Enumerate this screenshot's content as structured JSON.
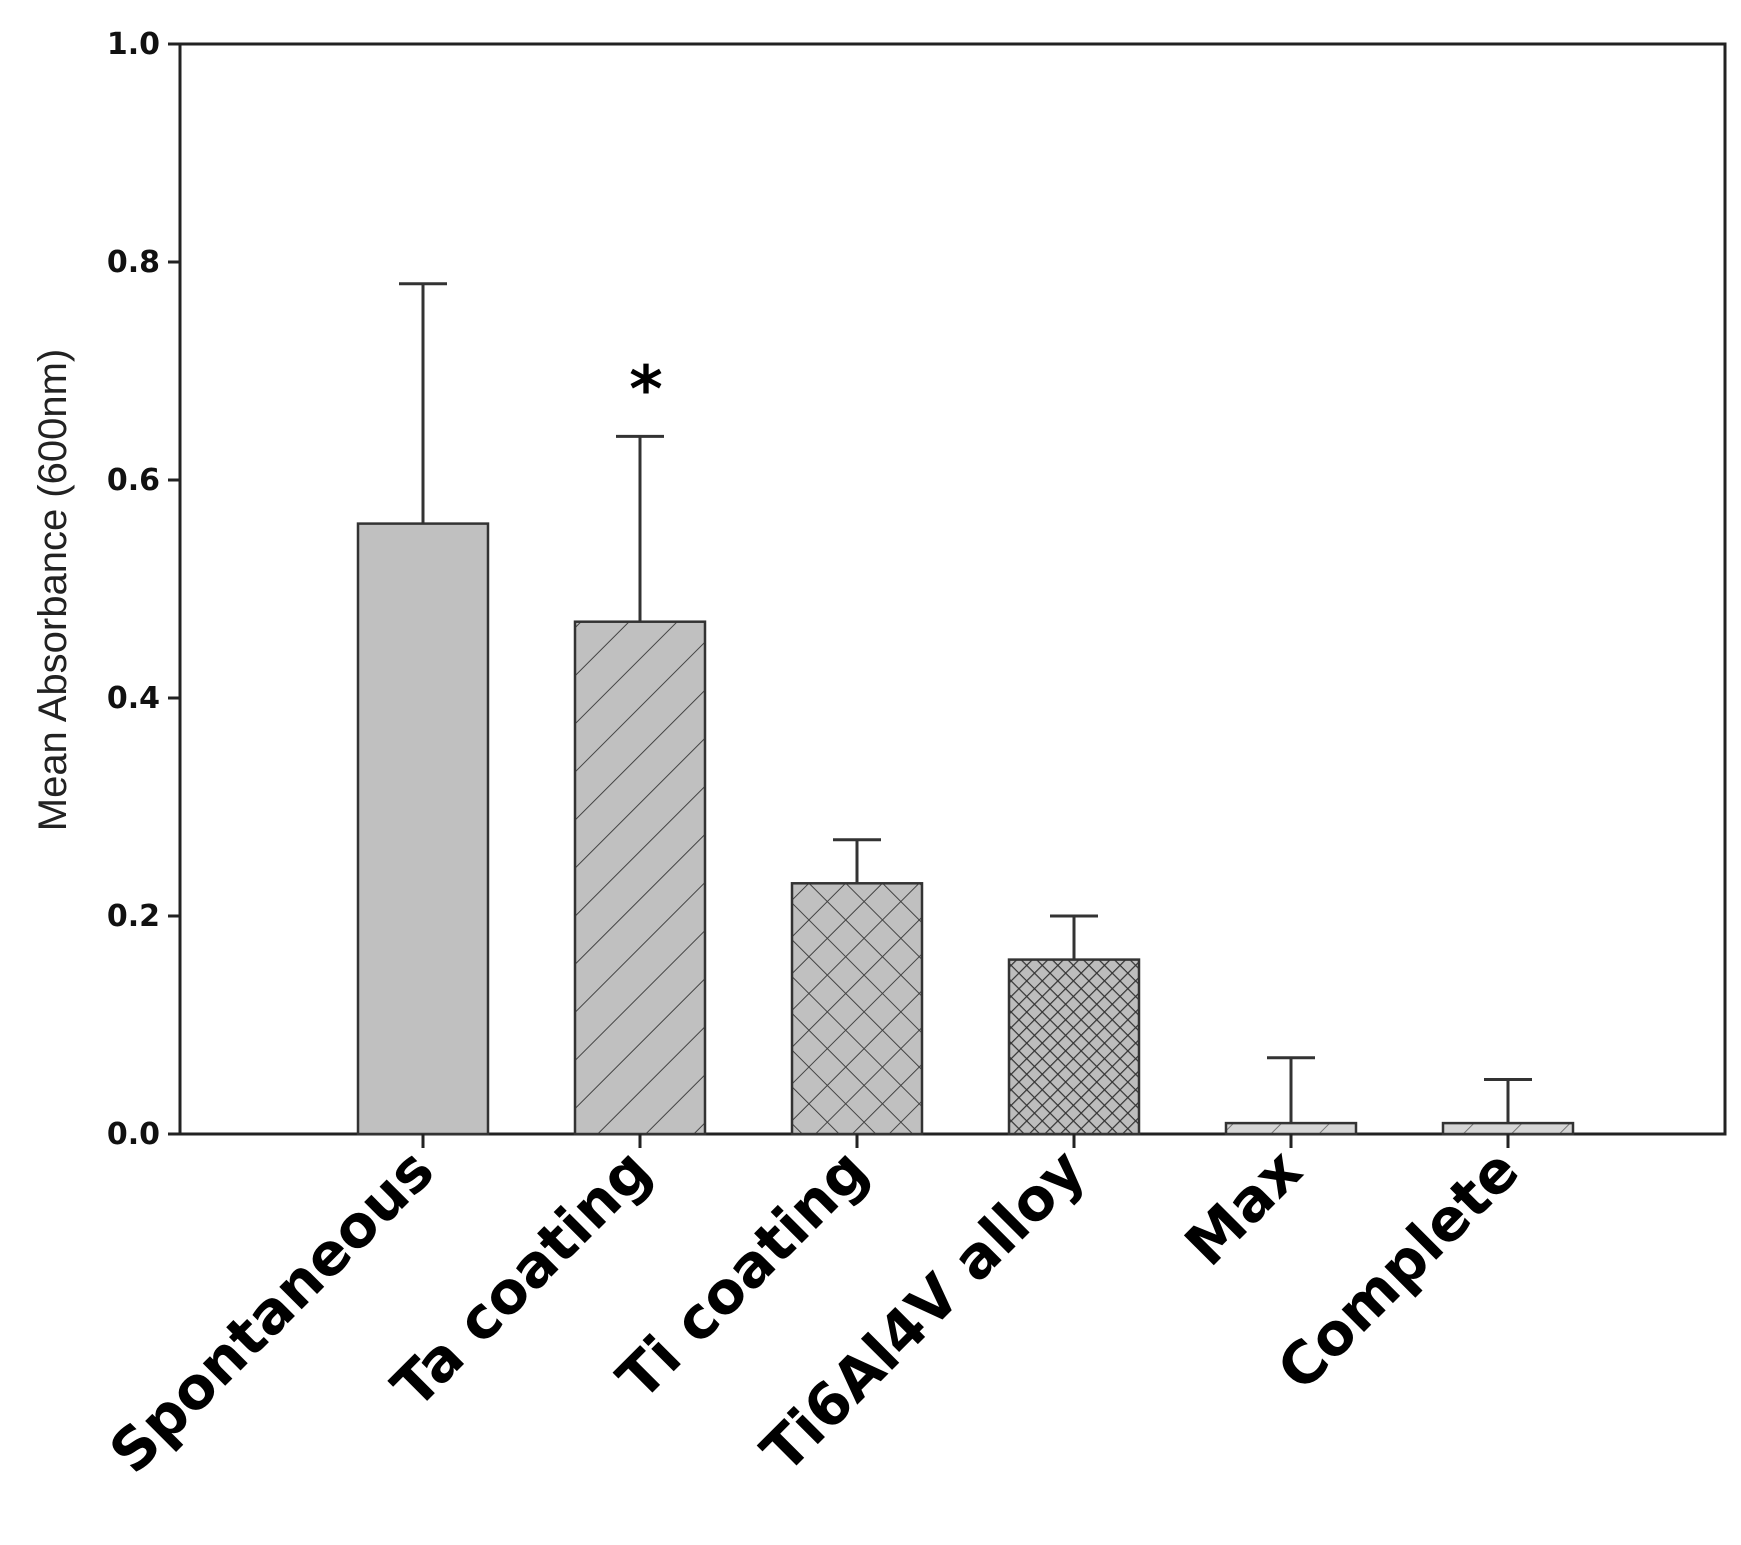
{
  "chart_data": {
    "type": "bar",
    "title": "",
    "xlabel": "",
    "ylabel": "Mean Absorbance (600nm)",
    "ylim": [
      0,
      1.0
    ],
    "yticks": [
      0.0,
      0.2,
      0.4,
      0.6,
      0.8,
      1.0
    ],
    "ytick_labels": [
      "0.0",
      "0.2",
      "0.4",
      "0.6",
      "0.8",
      "1.0"
    ],
    "grid": false,
    "categories": [
      "Spontaneous",
      "Ta coating",
      "Ti coating",
      "Ti6Al4V alloy",
      "Max",
      "Complete"
    ],
    "values": [
      0.56,
      0.47,
      0.23,
      0.16,
      0.01,
      0.01
    ],
    "error_upper": [
      0.22,
      0.17,
      0.04,
      0.04,
      0.06,
      0.04
    ],
    "patterns": [
      "solid",
      "diagonal",
      "crosshatch",
      "fine-crosshatch",
      "diagonal-light",
      "diagonal-light"
    ],
    "annotations": [
      {
        "category": "Ta coating",
        "text": "*"
      }
    ],
    "colors": {
      "bar_fill": "#c0c0c0",
      "bar_stroke": "#333333",
      "axis": "#222222"
    }
  }
}
